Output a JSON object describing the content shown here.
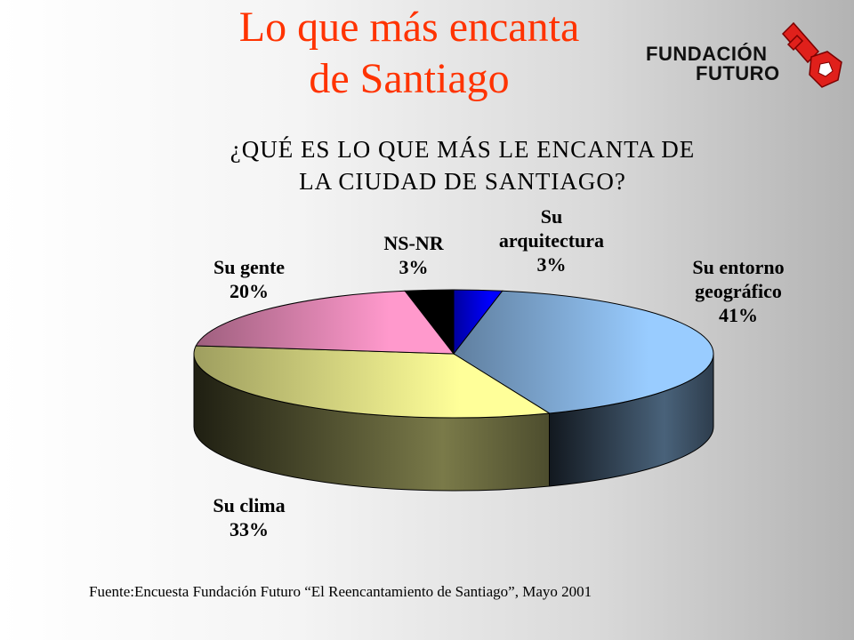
{
  "title": {
    "line1": "Lo que más encanta",
    "line2": "de Santiago"
  },
  "logo": {
    "line1": "FUNDACIÓN",
    "line2": "FUTURO"
  },
  "colors": {
    "title": "#ff3300",
    "logo_mark": "#e0201b"
  },
  "chart_data": {
    "type": "pie",
    "style": "3d",
    "title_lines": [
      "¿QUÉ ES LO QUE MÁS LE ENCANTA DE",
      "LA CIUDAD DE SANTIAGO?"
    ],
    "slices": [
      {
        "name": "Su arquitectura",
        "label_lines": [
          "Su",
          "arquitectura",
          "3%"
        ],
        "value": 3,
        "color": "#0000ff"
      },
      {
        "name": "Su entorno geográfico",
        "label_lines": [
          "Su entorno",
          "geográfico",
          "41%"
        ],
        "value": 41,
        "color": "#99ccff"
      },
      {
        "name": "Su clima",
        "label_lines": [
          "Su clima",
          "33%"
        ],
        "value": 33,
        "color": "#ffff99"
      },
      {
        "name": "Su gente",
        "label_lines": [
          "Su gente",
          "20%"
        ],
        "value": 20,
        "color": "#ff99cc"
      },
      {
        "name": "NS-NR",
        "label_lines": [
          "NS-NR",
          "3%"
        ],
        "value": 3,
        "color": "#000000"
      }
    ]
  },
  "source": "Fuente:Encuesta Fundación Futuro  “El Reencantamiento de Santiago”, Mayo 2001"
}
